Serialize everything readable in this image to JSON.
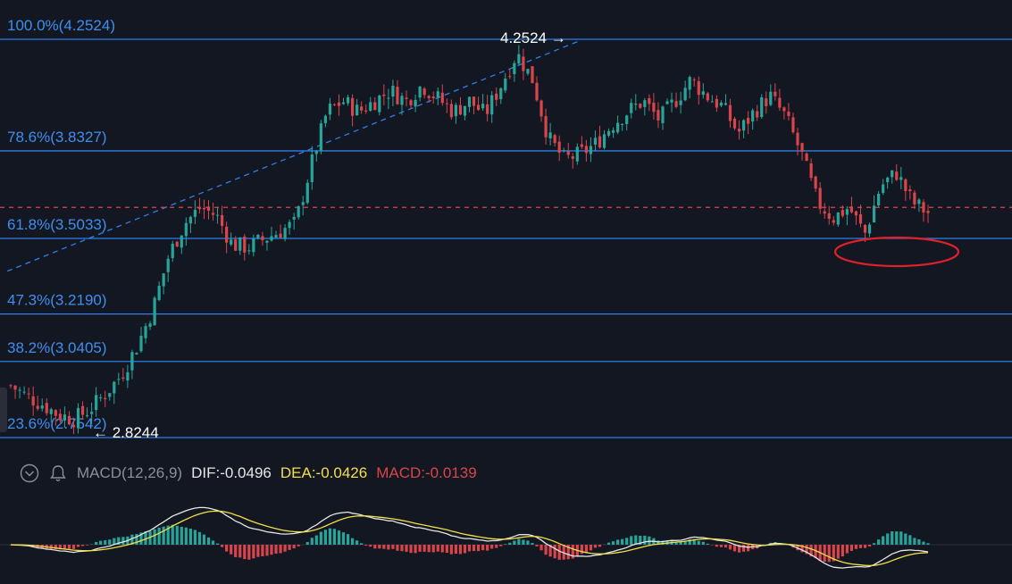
{
  "colors": {
    "background": "#131722",
    "fib_line": "#2f7fe8",
    "fib_text": "#3d8ff0",
    "up": "#26a69a",
    "down": "#d9454b",
    "dif": "#e6e6e6",
    "dea": "#f0e047",
    "current_price_line": "#d9454b",
    "highlight_circle": "#e0202a"
  },
  "header": {
    "collapse_icon": "chevron-down-icon",
    "alert_icon": "bell-icon",
    "macd_name": "MACD(12,26,9)",
    "dif": "DIF:-0.0496",
    "dea": "DEA:-0.0426",
    "macd": "MACD:-0.0139"
  },
  "chart_data": {
    "type": "candlestick",
    "price_range": [
      2.69,
      4.3
    ],
    "fib_levels": [
      {
        "label": "100.0%(4.2524)",
        "value": 4.2524
      },
      {
        "label": "78.6%(3.8327)",
        "value": 3.8327
      },
      {
        "label": "61.8%(3.5033)",
        "value": 3.5033
      },
      {
        "label": "47.3%(3.2190)",
        "value": 3.219
      },
      {
        "label": "38.2%(3.0405)",
        "value": 3.0405
      },
      {
        "label": "23.6%(2.7542)",
        "value": 2.7542
      }
    ],
    "high_label": "4.2524",
    "low_label": "2.8244",
    "current_price": 3.62,
    "trend_line": {
      "from": 3.38,
      "to": 4.2524
    },
    "price_path": [
      2.95,
      2.91,
      2.88,
      2.84,
      2.8244,
      2.86,
      2.92,
      2.99,
      3.1,
      3.24,
      3.44,
      3.56,
      3.62,
      3.59,
      3.48,
      3.47,
      3.5,
      3.53,
      3.56,
      3.78,
      3.98,
      4.02,
      3.98,
      4.02,
      4.06,
      4.02,
      4.08,
      4.03,
      3.98,
      4.02,
      3.97,
      4.08,
      4.2,
      4.1,
      3.88,
      3.8,
      3.82,
      3.86,
      3.93,
      3.98,
      4.02,
      3.95,
      4.02,
      4.1,
      4.04,
      4.0,
      3.9,
      3.98,
      4.04,
      3.96,
      3.82,
      3.64,
      3.58,
      3.62,
      3.52,
      3.7,
      3.75,
      3.64,
      3.6
    ],
    "macd_range": [
      -0.12,
      0.26
    ]
  }
}
